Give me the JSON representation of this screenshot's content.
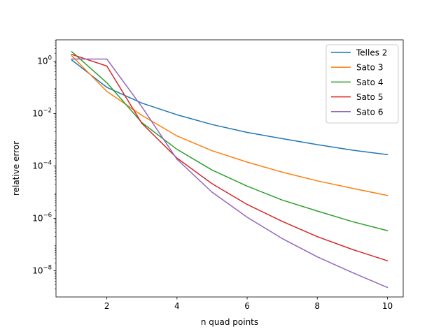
{
  "chart_data": {
    "type": "line",
    "xlabel": "n quad points",
    "ylabel": "relative error",
    "yscale": "log",
    "xlim": [
      0.55,
      10.45
    ],
    "ylim": [
      1e-09,
      6.5
    ],
    "x": [
      1,
      2,
      3,
      4,
      5,
      6,
      7,
      8,
      9,
      10
    ],
    "x_ticks": [
      2,
      4,
      6,
      8,
      10
    ],
    "x_tick_labels": [
      "2",
      "4",
      "6",
      "8",
      "10"
    ],
    "y_ticks": [
      {
        "value": 1,
        "base": "10",
        "exp": "0"
      },
      {
        "value": 0.01,
        "base": "10",
        "exp": "−2"
      },
      {
        "value": 0.0001,
        "base": "10",
        "exp": "−4"
      },
      {
        "value": 1e-06,
        "base": "10",
        "exp": "−6"
      },
      {
        "value": 1e-08,
        "base": "10",
        "exp": "−8"
      }
    ],
    "legend_position": "top-right",
    "series": [
      {
        "name": "Telles 2",
        "color": "#1f77b4",
        "values": [
          1.1,
          0.1,
          0.025,
          0.009,
          0.0038,
          0.0019,
          0.0011,
          0.00065,
          0.0004,
          0.00027
        ]
      },
      {
        "name": "Sato 3",
        "color": "#ff7f0e",
        "values": [
          1.6,
          0.07,
          0.0085,
          0.0014,
          0.00038,
          0.00014,
          5.8e-05,
          2.7e-05,
          1.4e-05,
          7.5e-06
        ]
      },
      {
        "name": "Sato 4",
        "color": "#2ca02c",
        "values": [
          2.3,
          0.15,
          0.0045,
          0.00043,
          7e-05,
          1.7e-05,
          5e-06,
          1.9e-06,
          7.5e-07,
          3.4e-07
        ]
      },
      {
        "name": "Sato 5",
        "color": "#d62728",
        "values": [
          1.8,
          0.65,
          0.0042,
          0.0002,
          2.1e-05,
          3.4e-06,
          7.7e-07,
          2e-07,
          6.5e-08,
          2.4e-08
        ]
      },
      {
        "name": "Sato 6",
        "color": "#9467bd",
        "values": [
          1.2,
          1.2,
          0.018,
          0.00018,
          1e-05,
          1.1e-06,
          1.7e-07,
          3.4e-08,
          8.5e-09,
          2.3e-09
        ]
      }
    ]
  }
}
